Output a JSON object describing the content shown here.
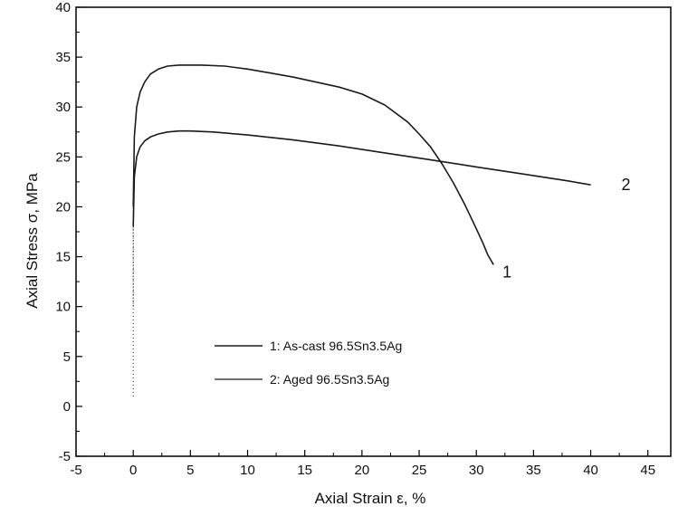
{
  "chart_data": {
    "type": "line",
    "title": "",
    "xlabel": "Axial Strain ε, %",
    "ylabel": "Axial Stress σ, MPa",
    "xlim": [
      -5,
      47
    ],
    "ylim": [
      -5,
      40
    ],
    "x_ticks": [
      "-5",
      "0",
      "5",
      "10",
      "15",
      "20",
      "25",
      "30",
      "35",
      "40",
      "45"
    ],
    "y_ticks": [
      "-5",
      "0",
      "5",
      "10",
      "15",
      "20",
      "25",
      "30",
      "35",
      "40"
    ],
    "grid": false,
    "legend_position": "lower-left",
    "series": [
      {
        "name": "1: As-cast 96.5Sn3.5Ag",
        "label": "1",
        "x": [
          0,
          0.1,
          0.3,
          0.6,
          1,
          1.5,
          2.2,
          3,
          4,
          6,
          8,
          10,
          12,
          14,
          16,
          18,
          20,
          22,
          24,
          25,
          26,
          27,
          28,
          29,
          30,
          30.6,
          31,
          31.5
        ],
        "y": [
          20,
          27,
          30,
          31.5,
          32.5,
          33.3,
          33.8,
          34.1,
          34.2,
          34.2,
          34.1,
          33.8,
          33.4,
          33,
          32.5,
          32,
          31.3,
          30.2,
          28.5,
          27.3,
          26,
          24.3,
          22.4,
          20.2,
          17.8,
          16.3,
          15.2,
          14.2
        ]
      },
      {
        "name": "2: Aged 96.5Sn3.5Ag",
        "label": "2",
        "x": [
          0,
          0.1,
          0.3,
          0.6,
          1,
          1.5,
          2.2,
          3,
          4,
          5,
          7,
          10,
          14,
          18,
          22,
          26,
          30,
          34,
          38,
          40
        ],
        "y": [
          18,
          23,
          25,
          26,
          26.6,
          27,
          27.3,
          27.5,
          27.6,
          27.6,
          27.5,
          27.2,
          26.7,
          26.1,
          25.4,
          24.7,
          24,
          23.3,
          22.6,
          22.2
        ]
      }
    ]
  },
  "colors": {
    "line": "#1a1a1a",
    "axis": "#000000",
    "background": "#ffffff"
  }
}
